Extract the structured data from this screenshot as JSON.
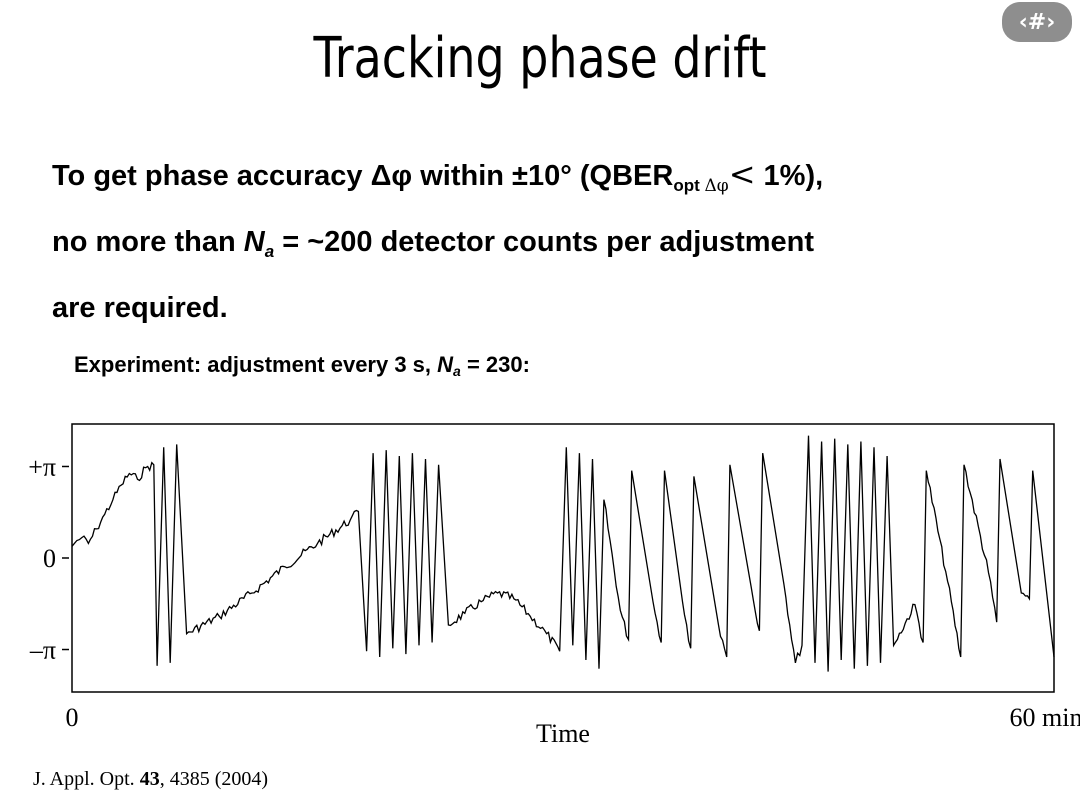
{
  "slide_number": "‹#›",
  "title": "Tracking phase drift",
  "body": {
    "p1": "To get phase accuracy Δφ within ±10° (QBER",
    "p1_sub": "opt",
    "p1_sub_symbol": "Δφ",
    "p1_lt": "<",
    "p1_end": " 1%),",
    "p2_a": "no more than ",
    "p2_N": "N",
    "p2_sub": "a",
    "p2_b": " = ~200 detector counts per adjustment",
    "p3": "are required."
  },
  "experiment": {
    "a": "Experiment: adjustment every 3 s, ",
    "N": "N",
    "sub": "a",
    "b": " = 230:"
  },
  "citation": {
    "a": "J. Appl. Opt. ",
    "vol": "43",
    "b": ", 4385 (2004)"
  },
  "chart_data": {
    "type": "line",
    "xlabel": "Time",
    "x_tick_labels": [
      "0",
      "60 min"
    ],
    "xlim": [
      0,
      60
    ],
    "y_tick_labels": [
      "+π",
      "0",
      "–π"
    ],
    "y_ticks": [
      3.1416,
      0,
      -3.1416
    ],
    "ylim": [
      -4.6,
      4.6
    ],
    "series": [
      {
        "x": [
          0,
          0.3,
          0.6,
          1,
          1.5,
          2,
          2.5,
          3,
          3.5,
          4,
          4.5,
          5,
          5.2,
          5.6,
          6.0,
          6.4,
          7,
          9,
          11,
          13,
          15,
          17,
          17.5,
          18.0,
          18.4,
          18.8,
          19.2,
          19.6,
          20.0,
          20.4,
          20.8,
          21.2,
          21.6,
          22.0,
          22.4,
          23,
          24,
          25,
          26,
          27,
          28,
          29,
          29.8,
          30.2,
          30.6,
          31.0,
          31.4,
          31.8,
          32.2,
          32.5,
          33.5,
          34,
          34.2,
          35.5,
          36.0,
          36.2,
          37.3,
          37.8,
          38.0,
          39.5,
          40.0,
          40.2,
          41.5,
          42.0,
          42.2,
          43.5,
          44.2,
          44.6,
          45.0,
          45.4,
          45.8,
          46.2,
          46.6,
          47.0,
          47.4,
          47.8,
          48.2,
          48.6,
          49.0,
          49.4,
          49.8,
          50.2,
          51.5,
          52.0,
          52.2,
          53.5,
          54.3,
          54.5,
          56,
          56.5,
          56.7,
          58,
          58.5,
          58.7,
          60
        ],
        "y": [
          0.4,
          0.6,
          0.7,
          0.5,
          1.0,
          1.5,
          2.0,
          2.5,
          2.9,
          2.7,
          3.1,
          3.2,
          -3.7,
          3.8,
          -3.6,
          3.9,
          -2.6,
          -2.0,
          -1.2,
          -0.3,
          0.5,
          1.3,
          1.6,
          -3.2,
          3.6,
          -3.4,
          3.7,
          -3.1,
          3.5,
          -3.3,
          3.6,
          -3.0,
          3.4,
          -2.9,
          3.2,
          -2.3,
          -1.9,
          -1.5,
          -1.2,
          -1.4,
          -2.0,
          -2.6,
          -3.2,
          3.8,
          -3.0,
          3.6,
          -3.5,
          3.4,
          -3.8,
          2.0,
          -1.8,
          -2.8,
          3.0,
          -1.5,
          -2.9,
          3.0,
          -1.5,
          -3.1,
          2.8,
          -2.3,
          -3.4,
          3.2,
          -1.0,
          -2.5,
          3.6,
          -0.9,
          -3.6,
          -3.0,
          4.2,
          -3.6,
          4.0,
          -3.9,
          4.1,
          -3.5,
          3.9,
          -3.8,
          4.0,
          -3.7,
          3.8,
          -3.6,
          3.5,
          -3.0,
          -1.6,
          -2.9,
          3.0,
          -0.8,
          -3.4,
          3.2,
          -0.5,
          -2.2,
          3.4,
          -1.2,
          -1.4,
          3.0,
          -3.4
        ]
      }
    ]
  }
}
